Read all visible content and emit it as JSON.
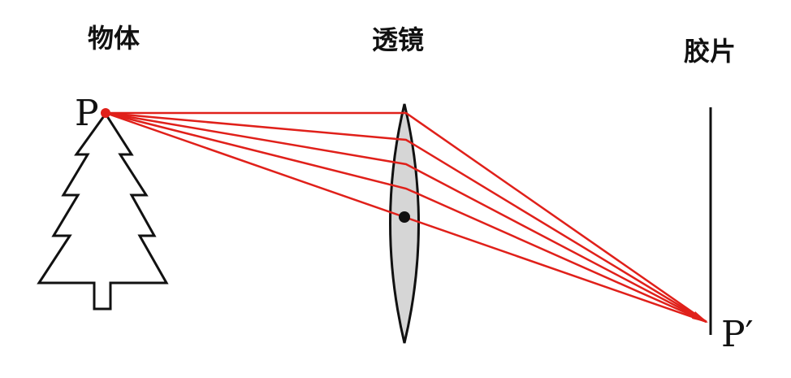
{
  "labels": {
    "object": "物体",
    "lens": "透镜",
    "film": "胶片",
    "point_object": "P",
    "point_image": "P′"
  },
  "colors": {
    "ray": "#e0201a",
    "lens_fill": "#d6d6d6",
    "stroke": "#111111",
    "background": "#ffffff"
  },
  "ray_count": 4
}
